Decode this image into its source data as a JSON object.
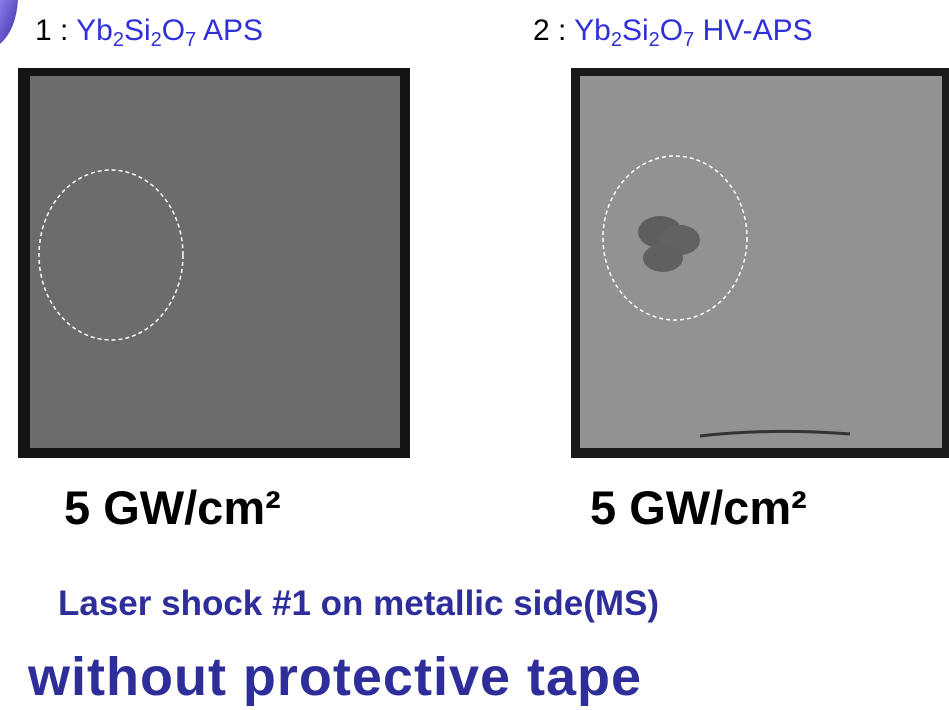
{
  "panels": [
    {
      "index": "1 :",
      "formula": [
        "Yb",
        "2",
        "Si",
        "2",
        "O",
        "7"
      ],
      "method": "APS",
      "fluence": "5 GW/cm²"
    },
    {
      "index": "2 :",
      "formula": [
        "Yb",
        "2",
        "Si",
        "2",
        "O",
        "7"
      ],
      "method": "HV-APS",
      "fluence": "5 GW/cm²"
    }
  ],
  "caption": {
    "line1": "Laser shock #1 on metallic side(MS)",
    "line2": "without protective tape"
  }
}
